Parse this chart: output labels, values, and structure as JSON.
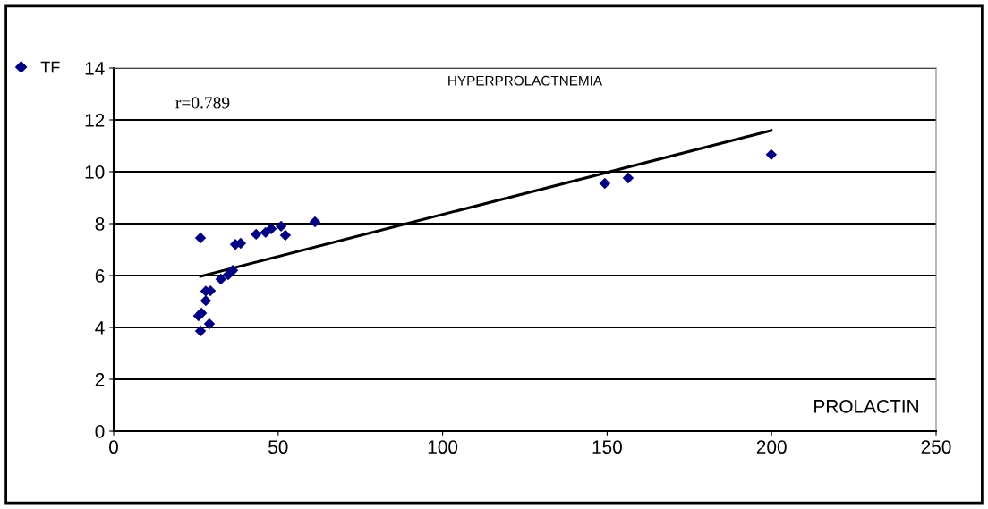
{
  "chart_data": {
    "type": "scatter",
    "title": "HYPERPROLACTNEMIA",
    "xlabel": "PROLACTIN",
    "annotations": [
      "r=0.789"
    ],
    "series": [
      {
        "name": "TF",
        "color": "#000080",
        "marker": "diamond",
        "x": [
          26.4,
          29.1,
          25.8,
          26.7,
          28.0,
          29.4,
          28.0,
          32.6,
          34.8,
          36.2,
          26.4,
          37.0,
          38.6,
          43.3,
          46.2,
          47.9,
          50.9,
          52.2,
          61.2,
          149.3,
          156.4,
          199.9
        ],
        "values": [
          3.86,
          4.14,
          4.45,
          4.55,
          5.03,
          5.41,
          5.4,
          5.86,
          6.03,
          6.2,
          7.45,
          7.2,
          7.24,
          7.59,
          7.66,
          7.8,
          7.9,
          7.55,
          8.07,
          9.55,
          9.76,
          10.66
        ]
      },
      {
        "type": "line",
        "color": "#000000",
        "x": [
          26.4,
          199.9
        ],
        "values": [
          5.97,
          11.59
        ]
      }
    ],
    "xlim": [
      0,
      250
    ],
    "xticks": [
      0,
      50,
      100,
      150,
      200,
      250
    ],
    "ylim": [
      0,
      14
    ],
    "yticks": [
      0,
      2,
      4,
      6,
      8,
      10,
      12,
      14
    ],
    "grid": "y",
    "legend": "top left"
  }
}
